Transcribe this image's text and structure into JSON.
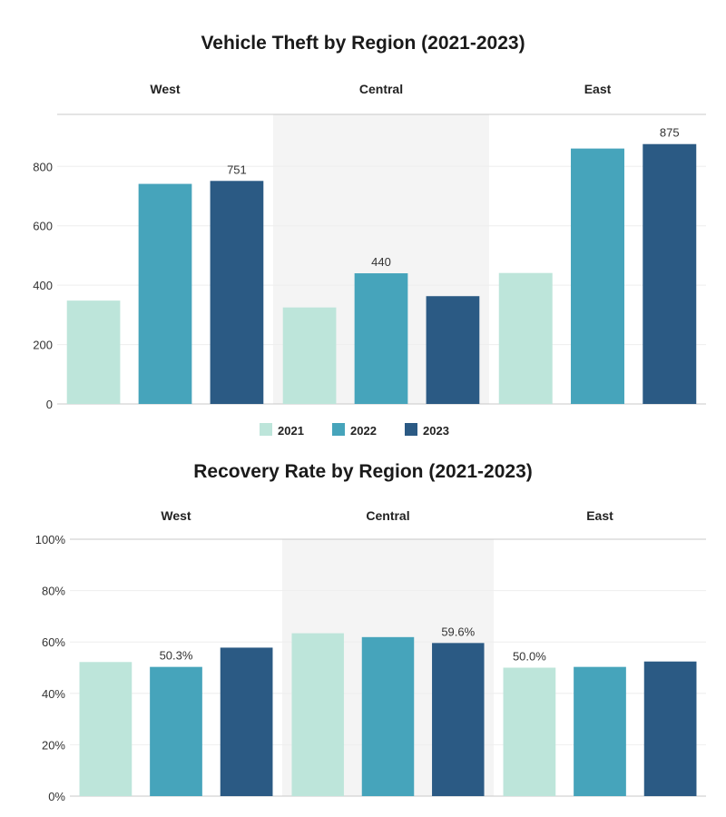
{
  "chart_data": [
    {
      "type": "bar",
      "title": "Vehicle Theft by Region (2021-2023)",
      "categories": [
        "West",
        "Central",
        "East"
      ],
      "series": [
        {
          "name": "2021",
          "color": "#bde5da",
          "values": [
            348,
            325,
            441
          ]
        },
        {
          "name": "2022",
          "color": "#46a4bb",
          "values": [
            741,
            440,
            860
          ]
        },
        {
          "name": "2023",
          "color": "#2b5a84",
          "values": [
            751,
            363,
            875
          ]
        }
      ],
      "data_labels": [
        {
          "category": "West",
          "series": "2023",
          "text": "751"
        },
        {
          "category": "Central",
          "series": "2022",
          "text": "440"
        },
        {
          "category": "East",
          "series": "2023",
          "text": "875"
        }
      ],
      "yticks": [
        0,
        200,
        400,
        600,
        800
      ],
      "ytick_labels": [
        "0",
        "200",
        "400",
        "600",
        "800"
      ],
      "ylim": [
        0,
        975
      ],
      "shaded_category": "Central",
      "grid": true,
      "legend": {
        "position": "bottom",
        "entries": [
          "2021",
          "2022",
          "2023"
        ]
      }
    },
    {
      "type": "bar",
      "title": "Recovery Rate by Region (2021-2023)",
      "categories": [
        "West",
        "Central",
        "East"
      ],
      "series": [
        {
          "name": "2021",
          "color": "#bde5da",
          "values": [
            52.2,
            63.4,
            50.0
          ]
        },
        {
          "name": "2022",
          "color": "#46a4bb",
          "values": [
            50.3,
            61.9,
            50.3
          ]
        },
        {
          "name": "2023",
          "color": "#2b5a84",
          "values": [
            57.8,
            59.6,
            52.4
          ]
        }
      ],
      "data_labels": [
        {
          "category": "West",
          "series": "2022",
          "text": "50.3%"
        },
        {
          "category": "Central",
          "series": "2023",
          "text": "59.6%"
        },
        {
          "category": "East",
          "series": "2021",
          "text": "50.0%"
        }
      ],
      "yticks": [
        0,
        20,
        40,
        60,
        80,
        100
      ],
      "ytick_labels": [
        "0%",
        "20%",
        "40%",
        "60%",
        "80%",
        "100%"
      ],
      "ylim": [
        0,
        100
      ],
      "shaded_category": "Central",
      "grid": true,
      "legend": null
    }
  ]
}
